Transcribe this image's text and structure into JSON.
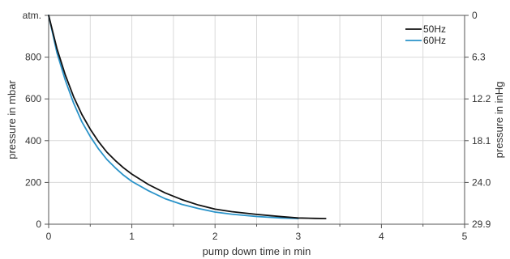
{
  "chart_data": {
    "type": "line",
    "xlabel": "pump down time in min",
    "ylabel": "pressure in mbar",
    "y2label": "pressure in inHg",
    "xlim": [
      0,
      5
    ],
    "ylim": [
      0,
      1000
    ],
    "x_ticks": [
      "0",
      "1",
      "2",
      "3",
      "4",
      "5"
    ],
    "y_ticks": [
      "0",
      "200",
      "400",
      "600",
      "800",
      "atm."
    ],
    "y2_ticks": [
      "29.9",
      "24.0",
      "18.1",
      "12.2",
      "6.3",
      "0"
    ],
    "grid": true,
    "legend_position": "top-right",
    "series": [
      {
        "name": "50Hz",
        "color": "#111111",
        "x": [
          0,
          0.1,
          0.2,
          0.3,
          0.4,
          0.5,
          0.6,
          0.7,
          0.8,
          0.9,
          1.0,
          1.2,
          1.4,
          1.6,
          1.8,
          2.0,
          2.2,
          2.5,
          2.8,
          3.0,
          3.2,
          3.33
        ],
        "y": [
          1000,
          840,
          715,
          610,
          525,
          455,
          395,
          345,
          305,
          270,
          240,
          190,
          150,
          118,
          92,
          72,
          60,
          47,
          36,
          30,
          28,
          27
        ]
      },
      {
        "name": "60Hz",
        "color": "#2a93c9",
        "x": [
          0,
          0.1,
          0.2,
          0.3,
          0.4,
          0.5,
          0.6,
          0.7,
          0.8,
          0.9,
          1.0,
          1.2,
          1.4,
          1.6,
          1.8,
          2.0,
          2.2,
          2.5,
          2.8,
          3.0
        ],
        "y": [
          1000,
          820,
          690,
          580,
          490,
          420,
          360,
          310,
          270,
          235,
          205,
          160,
          122,
          95,
          75,
          58,
          48,
          37,
          30,
          27
        ]
      }
    ]
  }
}
